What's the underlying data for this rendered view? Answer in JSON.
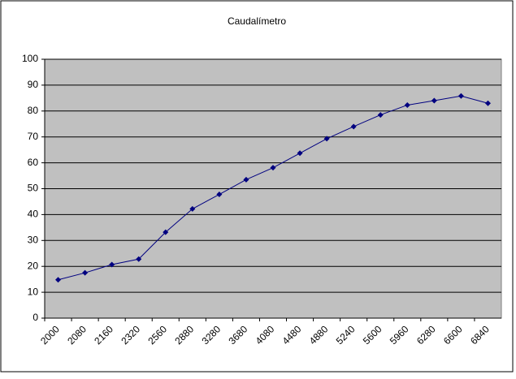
{
  "chart_data": {
    "type": "line",
    "title": "Caudalímetro",
    "categories": [
      "2000",
      "2080",
      "2160",
      "2320",
      "2560",
      "2880",
      "3280",
      "3680",
      "4080",
      "4480",
      "4880",
      "5240",
      "5600",
      "5960",
      "6280",
      "6600",
      "6840"
    ],
    "series": [
      {
        "name": "Caudalímetro",
        "color": "#000080",
        "values": [
          14.8,
          17.5,
          20.7,
          22.8,
          33.2,
          42.2,
          47.8,
          53.5,
          58.1,
          63.7,
          69.3,
          74.0,
          78.5,
          82.3,
          84.0,
          85.8,
          83.0
        ]
      }
    ],
    "ylim": [
      0,
      100
    ],
    "yticks": [
      0,
      10,
      20,
      30,
      40,
      50,
      60,
      70,
      80,
      90,
      100
    ],
    "grid": true
  }
}
